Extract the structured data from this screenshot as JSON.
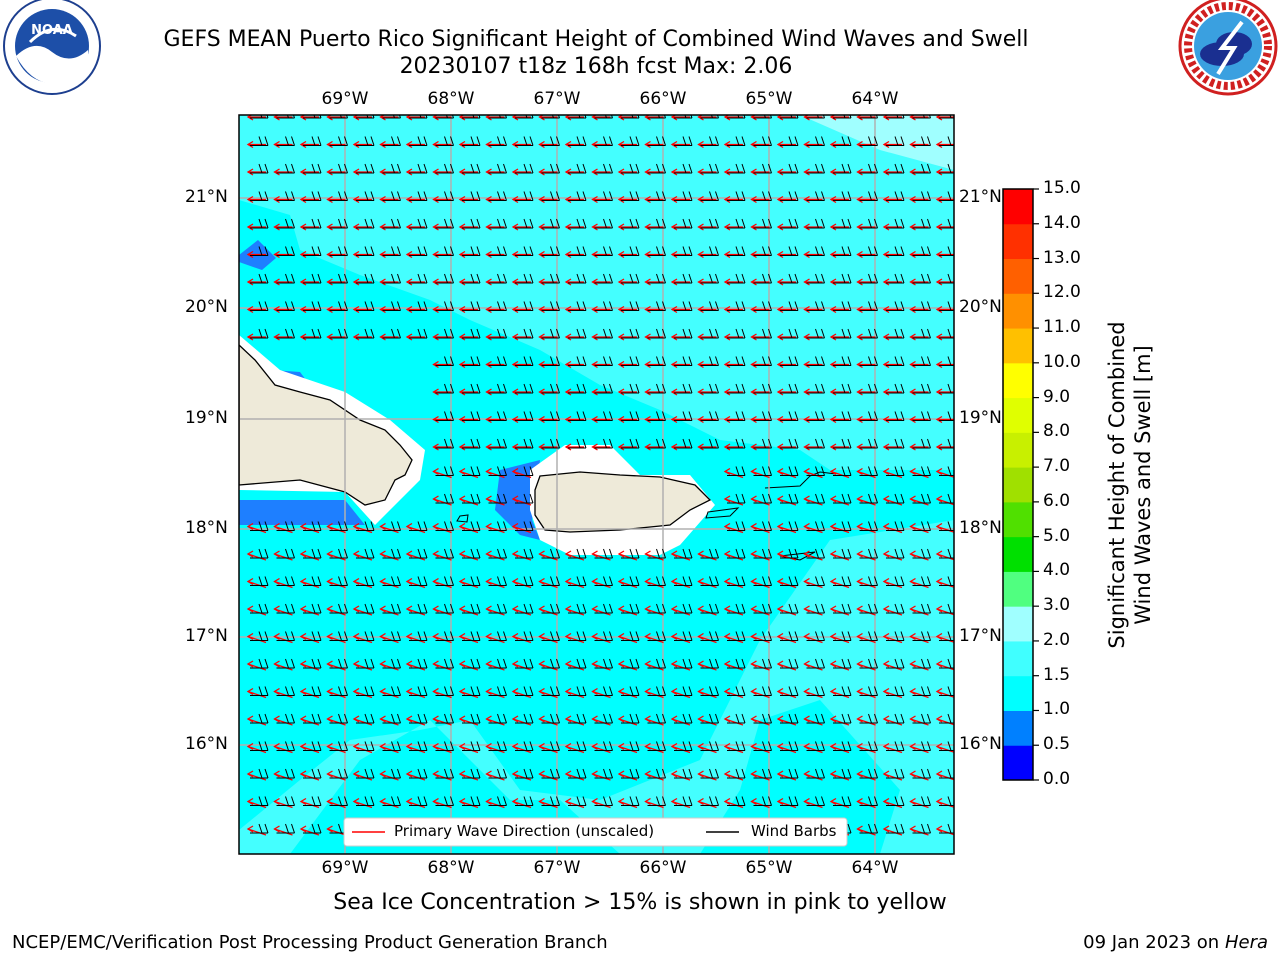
{
  "title": {
    "line1": "GEFS MEAN Puerto Rico Significant Height of Combined Wind Waves and Swell",
    "line2": "20230107 t18z 168h fcst   Max: 2.06"
  },
  "subtitle": "Sea Ice Concentration > 15% is shown in pink to yellow",
  "footer": {
    "left": "NCEP/EMC/Verification Post Processing Product Generation Branch",
    "right_date": "09 Jan 2023 on ",
    "right_host": "Hera"
  },
  "logos": {
    "noaa": {
      "label": "NOAA",
      "ring_text": "NATIONAL OCEANIC AND ATMOSPHERIC ADMINISTRATION · U.S. DEPARTMENT OF COMMERCE"
    },
    "nws": {
      "ring_text": "NATIONAL WEATHER SERVICE"
    }
  },
  "map": {
    "lon_labels": [
      "69°W",
      "68°W",
      "67°W",
      "66°W",
      "65°W",
      "64°W"
    ],
    "lat_labels": [
      "21°N",
      "20°N",
      "19°N",
      "18°N",
      "17°N",
      "16°N"
    ],
    "colors": {
      "ocean_main": "#00ffff",
      "ocean_light": "#44ffff",
      "ocean_lighter": "#a0ffff",
      "shallow": "#1e7fff",
      "land": "#eeead9",
      "wave_arrow": "#ff0000",
      "wind_barb": "#000000"
    },
    "legend": {
      "wave_direction": "Primary Wave Direction (unscaled)",
      "wind_barbs": "Wind Barbs"
    }
  },
  "colorbar": {
    "title_line1": "Significant Height of Combined",
    "title_line2": "Wind Waves and Swell [m]",
    "ticks": [
      "0.0",
      "0.5",
      "1.0",
      "1.5",
      "2.0",
      "3.0",
      "4.0",
      "5.0",
      "6.0",
      "7.0",
      "8.0",
      "9.0",
      "10.0",
      "11.0",
      "12.0",
      "13.0",
      "14.0",
      "15.0"
    ],
    "colors": [
      "#0000ff",
      "#0080ff",
      "#00ffff",
      "#40ffff",
      "#a0ffff",
      "#50ff80",
      "#00e000",
      "#50e000",
      "#a0e000",
      "#c8f000",
      "#e0ff00",
      "#ffff00",
      "#ffc000",
      "#ff9000",
      "#ff6000",
      "#ff3000",
      "#ff0000"
    ]
  }
}
